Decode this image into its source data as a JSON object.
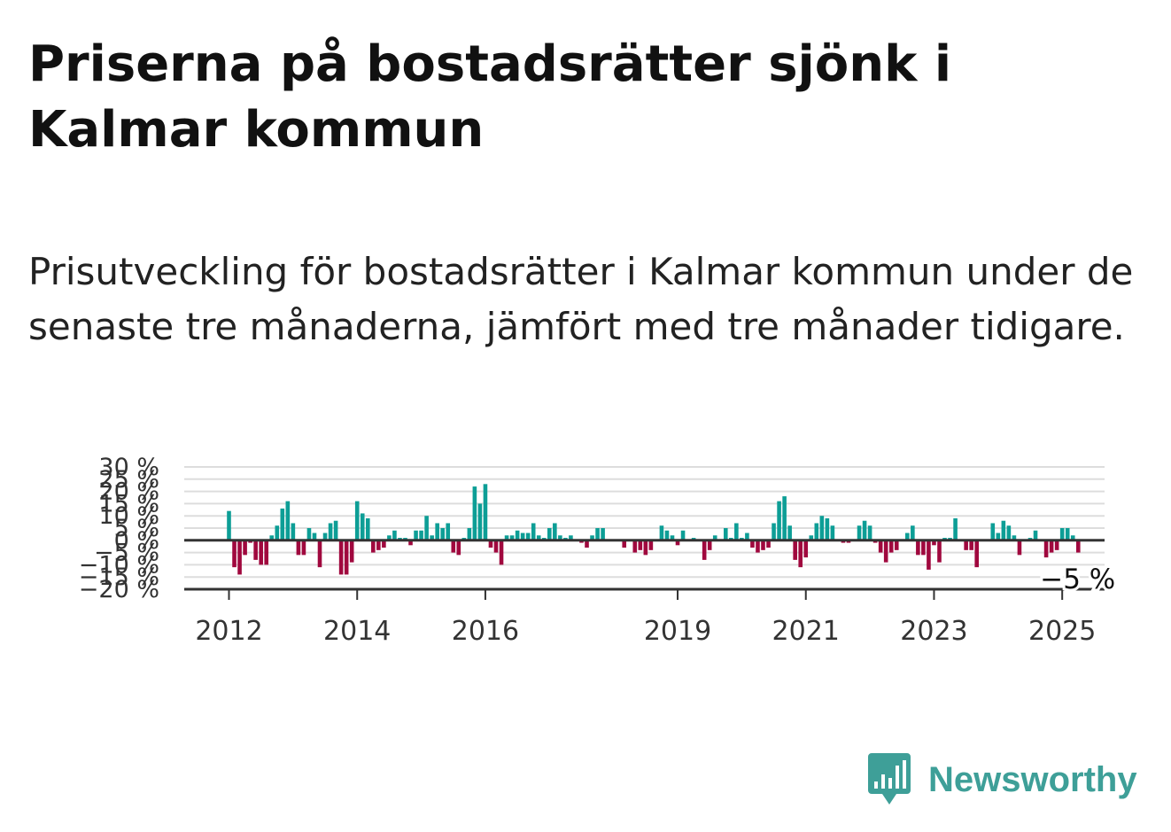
{
  "title": "Priserna på bostadsrätter sjönk i Kalmar kommun",
  "subtitle": "Prisutveckling för bostadsrätter i Kalmar kommun under de senaste tre månaderna, jämfört med tre månader tidigare.",
  "brand": {
    "name": "Newsworthy",
    "color": "#3e9f98",
    "icon": "newsworthy-logo-icon"
  },
  "colors": {
    "positive": "#0d9e96",
    "negative": "#a0083e",
    "grid": "#dddddd",
    "baseline": "#333333",
    "text": "#333333"
  },
  "chart_data": {
    "type": "bar",
    "x_start": "2012-01",
    "x_frequency": "monthly",
    "ylabel": "",
    "ylim": [
      -20,
      30
    ],
    "y_ticks": [
      30,
      25,
      20,
      15,
      10,
      5,
      0,
      -5,
      -10,
      -15,
      -20
    ],
    "y_tick_labels": [
      "30 %",
      "25 %",
      "20 %",
      "15 %",
      "10 %",
      "5 %",
      "0 %",
      "−5 %",
      "−10 %",
      "−15 %",
      "−20 %"
    ],
    "x_ticks": [
      "2012",
      "2014",
      "2016",
      "2019",
      "2021",
      "2023",
      "2025"
    ],
    "x_tick_dates": [
      "2012-01",
      "2014-01",
      "2016-01",
      "2019-01",
      "2021-01",
      "2023-01",
      "2025-01"
    ],
    "grid": true,
    "last_value_label": "−5 %",
    "values": [
      12,
      -11,
      -14,
      -6,
      -1,
      -8,
      -10,
      -10,
      2,
      6,
      13,
      16,
      7,
      -6,
      -6,
      5,
      3,
      -11,
      3,
      7,
      8,
      -14,
      -14,
      -9,
      16,
      11,
      9,
      -5,
      -4,
      -3,
      2,
      4,
      1,
      1,
      -2,
      4,
      4,
      10,
      2,
      7,
      5,
      7,
      -5,
      -6,
      1,
      5,
      22,
      15,
      23,
      -3,
      -5,
      -10,
      2,
      2,
      4,
      3,
      3,
      7,
      2,
      1,
      5,
      7,
      2,
      1,
      2,
      0,
      -1,
      -3,
      2,
      5,
      5,
      0,
      0,
      0,
      -3,
      0,
      -5,
      -4,
      -6,
      -4,
      0,
      6,
      4,
      2,
      -2,
      4,
      0,
      1,
      0,
      -8,
      -4,
      2,
      0,
      5,
      1,
      7,
      1,
      3,
      -3,
      -5,
      -4,
      -3,
      7,
      16,
      18,
      6,
      -8,
      -11,
      -7,
      2,
      7,
      10,
      9,
      6,
      0,
      -1,
      -1,
      0,
      6,
      8,
      6,
      -1,
      -5,
      -9,
      -5,
      -4,
      0,
      3,
      6,
      -6,
      -6,
      -12,
      -2,
      -9,
      1,
      1,
      9,
      0,
      -4,
      -4,
      -11,
      0,
      0,
      7,
      3,
      8,
      6,
      2,
      -6,
      0,
      1,
      4,
      0,
      -7,
      -5,
      -4,
      5,
      5,
      2,
      -5
    ]
  }
}
